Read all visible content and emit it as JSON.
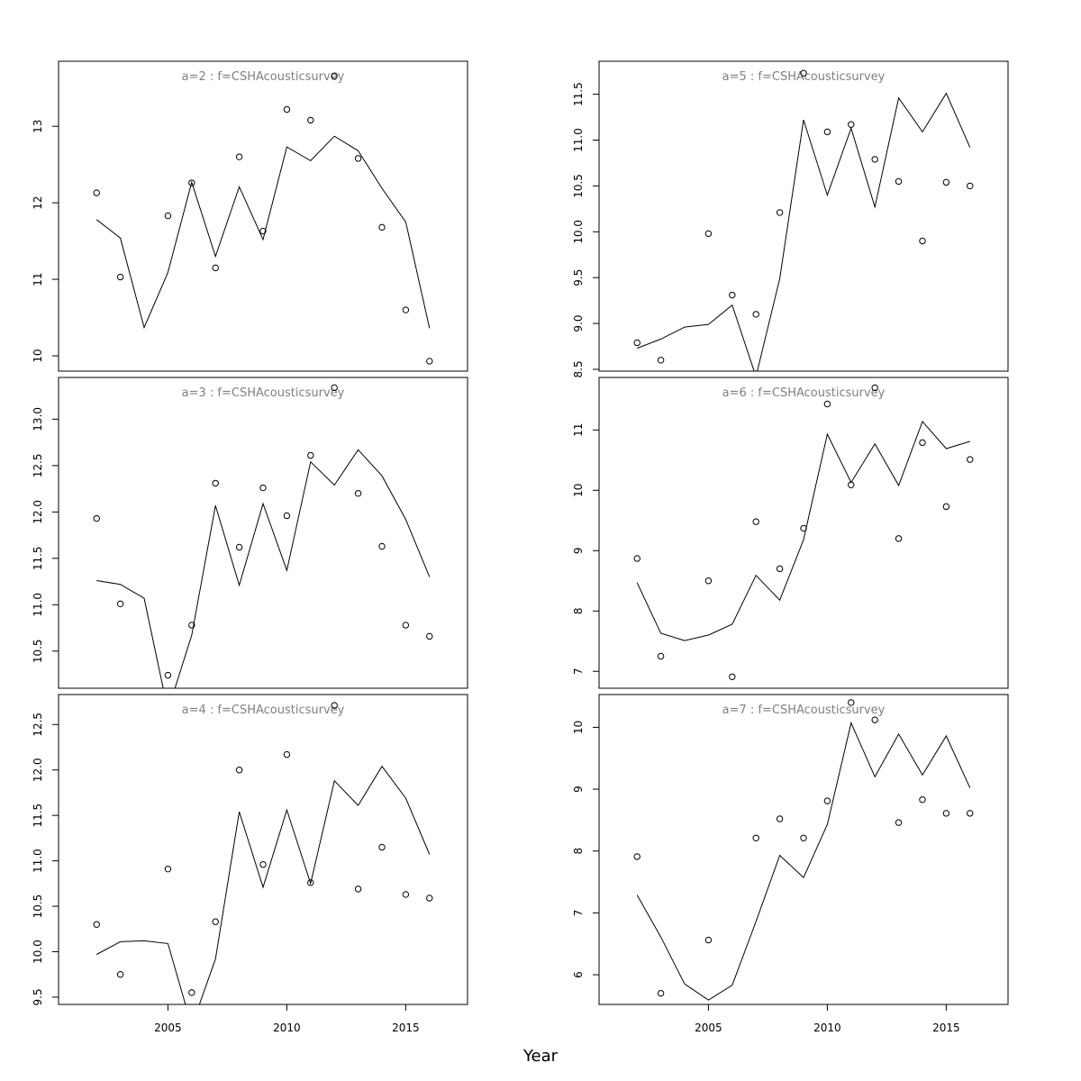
{
  "xlabel": "Year",
  "chart_data": [
    {
      "type": "line",
      "title": "a=2  :  f=CSHAcousticsurvey",
      "x": [
        2002,
        2003,
        2004,
        2005,
        2006,
        2007,
        2008,
        2009,
        2010,
        2011,
        2012,
        2013,
        2014,
        2015,
        2016
      ],
      "series": [
        {
          "values": [
            11.78,
            11.54,
            10.37,
            11.09,
            12.27,
            11.3,
            12.21,
            11.52,
            12.73,
            12.55,
            12.87,
            12.68,
            12.19,
            11.75,
            10.36
          ]
        }
      ],
      "points": [
        12.13,
        11.03,
        null,
        11.83,
        12.26,
        11.15,
        12.6,
        11.63,
        13.22,
        13.08,
        13.66,
        12.58,
        11.68,
        10.6,
        9.93
      ],
      "xlim": [
        2000.4,
        2017.6
      ],
      "ylim": [
        9.8,
        13.85
      ],
      "yticks": [
        10,
        11,
        12,
        13
      ],
      "ytick_labels": [
        "10",
        "11",
        "12",
        "13"
      ],
      "xticks": [],
      "xtick_labels": []
    },
    {
      "type": "line",
      "title": "a=3  :  f=CSHAcousticsurvey",
      "x": [
        2002,
        2003,
        2004,
        2005,
        2006,
        2007,
        2008,
        2009,
        2010,
        2011,
        2012,
        2013,
        2014,
        2015,
        2016
      ],
      "series": [
        {
          "values": [
            11.26,
            11.22,
            11.07,
            9.86,
            10.67,
            12.07,
            11.21,
            12.09,
            11.37,
            12.54,
            12.29,
            12.67,
            12.39,
            11.92,
            11.3
          ]
        }
      ],
      "points": [
        11.93,
        11.01,
        null,
        10.24,
        10.78,
        12.31,
        11.62,
        12.26,
        11.96,
        12.61,
        13.34,
        12.2,
        11.63,
        10.78,
        10.66
      ],
      "xlim": [
        2000.4,
        2017.6
      ],
      "ylim": [
        10.1,
        13.45
      ],
      "yticks": [
        10.5,
        11.0,
        11.5,
        12.0,
        12.5,
        13.0
      ],
      "ytick_labels": [
        "10.5",
        "11.0",
        "11.5",
        "12.0",
        "12.5",
        "13.0"
      ],
      "xticks": [],
      "xtick_labels": []
    },
    {
      "type": "line",
      "title": "a=4  :  f=CSHAcousticsurvey",
      "x": [
        2002,
        2003,
        2004,
        2005,
        2006,
        2007,
        2008,
        2009,
        2010,
        2011,
        2012,
        2013,
        2014,
        2015,
        2016
      ],
      "series": [
        {
          "values": [
            9.97,
            10.11,
            10.12,
            10.09,
            9.18,
            9.92,
            11.54,
            10.71,
            11.56,
            10.75,
            11.88,
            11.61,
            12.04,
            11.69,
            11.07
          ]
        }
      ],
      "points": [
        10.3,
        9.75,
        null,
        10.91,
        9.55,
        10.33,
        12.0,
        10.96,
        12.17,
        10.76,
        12.71,
        10.69,
        11.15,
        10.63,
        10.59
      ],
      "xlim": [
        2000.4,
        2017.6
      ],
      "ylim": [
        9.42,
        12.83
      ],
      "yticks": [
        9.5,
        10.0,
        10.5,
        11.0,
        11.5,
        12.0,
        12.5
      ],
      "ytick_labels": [
        "9.5",
        "10.0",
        "10.5",
        "11.0",
        "11.5",
        "12.0",
        "12.5"
      ],
      "xticks": [
        2005,
        2010,
        2015
      ],
      "xtick_labels": [
        "2005",
        "2010",
        "2015"
      ]
    },
    {
      "type": "line",
      "title": "a=5  :  f=CSHAcousticsurvey",
      "x": [
        2002,
        2003,
        2004,
        2005,
        2006,
        2007,
        2008,
        2009,
        2010,
        2011,
        2012,
        2013,
        2014,
        2015,
        2016
      ],
      "series": [
        {
          "values": [
            8.73,
            8.83,
            8.96,
            8.99,
            9.2,
            8.42,
            9.49,
            11.22,
            10.4,
            11.13,
            10.27,
            11.46,
            11.09,
            11.51,
            10.92
          ]
        }
      ],
      "points": [
        8.79,
        8.6,
        null,
        9.98,
        9.31,
        9.1,
        10.21,
        11.73,
        11.09,
        11.17,
        10.79,
        10.55,
        9.9,
        10.54,
        10.5
      ],
      "xlim": [
        2000.4,
        2017.6
      ],
      "ylim": [
        8.48,
        11.86
      ],
      "yticks": [
        8.5,
        9.0,
        9.5,
        10.0,
        10.5,
        11.0,
        11.5
      ],
      "ytick_labels": [
        "8.5",
        "9.0",
        "9.5",
        "10.0",
        "10.5",
        "11.0",
        "11.5"
      ],
      "xticks": [],
      "xtick_labels": []
    },
    {
      "type": "line",
      "title": "a=6  :  f=CSHAcousticsurvey",
      "x": [
        2002,
        2003,
        2004,
        2005,
        2006,
        2007,
        2008,
        2009,
        2010,
        2011,
        2012,
        2013,
        2014,
        2015,
        2016
      ],
      "series": [
        {
          "values": [
            8.47,
            7.63,
            7.51,
            7.6,
            7.78,
            8.59,
            8.18,
            9.18,
            10.93,
            10.13,
            10.77,
            10.08,
            11.14,
            10.69,
            10.81
          ]
        }
      ],
      "points": [
        8.87,
        7.25,
        null,
        8.5,
        6.91,
        9.48,
        8.7,
        9.37,
        11.43,
        10.09,
        11.7,
        9.2,
        10.79,
        9.73,
        10.51
      ],
      "xlim": [
        2000.4,
        2017.6
      ],
      "ylim": [
        6.72,
        11.87
      ],
      "yticks": [
        7,
        8,
        9,
        10,
        11
      ],
      "ytick_labels": [
        "7",
        "8",
        "9",
        "10",
        "11"
      ],
      "xticks": [],
      "xtick_labels": []
    },
    {
      "type": "line",
      "title": "a=7  :  f=CSHAcousticsurvey",
      "x": [
        2002,
        2003,
        2004,
        2005,
        2006,
        2007,
        2008,
        2009,
        2010,
        2011,
        2012,
        2013,
        2014,
        2015,
        2016
      ],
      "series": [
        {
          "values": [
            7.29,
            6.61,
            5.85,
            5.59,
            5.83,
            6.86,
            7.93,
            7.57,
            8.43,
            10.07,
            9.2,
            9.89,
            9.23,
            9.86,
            9.02
          ]
        }
      ],
      "points": [
        7.91,
        5.7,
        null,
        6.56,
        null,
        8.21,
        8.52,
        8.21,
        8.81,
        10.4,
        10.12,
        8.46,
        8.83,
        8.61,
        8.61
      ],
      "xlim": [
        2000.4,
        2017.6
      ],
      "ylim": [
        5.52,
        10.53
      ],
      "yticks": [
        6,
        7,
        8,
        9,
        10
      ],
      "ytick_labels": [
        "6",
        "7",
        "8",
        "9",
        "10"
      ],
      "xticks": [
        2005,
        2010,
        2015
      ],
      "xtick_labels": [
        "2005",
        "2010",
        "2015"
      ]
    }
  ]
}
